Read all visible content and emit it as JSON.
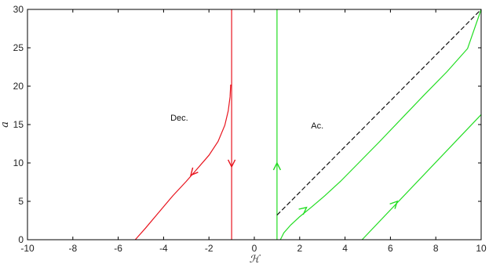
{
  "chart_data": {
    "type": "line",
    "title": "",
    "xlabel": "ℋ",
    "ylabel": "a",
    "xlim": [
      -10,
      10
    ],
    "ylim": [
      0,
      30
    ],
    "xticks": [
      "-10",
      "-8",
      "-6",
      "-4",
      "-2",
      "0",
      "2",
      "4",
      "6",
      "8",
      "10"
    ],
    "yticks": [
      "0",
      "5",
      "10",
      "15",
      "20",
      "25",
      "30"
    ],
    "grid": false,
    "annotations": [
      {
        "text": "Dec.",
        "x": -3.7,
        "y": 15.5
      },
      {
        "text": "Ac.",
        "x": 2.5,
        "y": 14.5
      }
    ],
    "series": [
      {
        "color": "#e8141e",
        "style": "solid",
        "x": [
          -5.25,
          -4.8,
          -4.2,
          -3.6,
          -3.0,
          -2.5,
          -2.0,
          -1.6,
          -1.3,
          -1.15,
          -1.07,
          -1.04
        ],
        "y": [
          0,
          1.5,
          3.6,
          5.7,
          7.6,
          9.3,
          11.0,
          12.8,
          14.9,
          16.8,
          18.6,
          20.2
        ],
        "arrows": [
          {
            "x": -2.8,
            "y": 8.4,
            "dir": "down"
          }
        ]
      },
      {
        "color": "#e8141e",
        "style": "solid",
        "x": [
          -1.0,
          -1.0
        ],
        "y": [
          30,
          0
        ],
        "arrows": [
          {
            "x": -1.0,
            "y": 9.5,
            "dir": "down"
          }
        ]
      },
      {
        "color": "#22dd22",
        "style": "solid",
        "x": [
          1.0,
          1.0
        ],
        "y": [
          0,
          30
        ],
        "arrows": [
          {
            "x": 1.0,
            "y": 10.0,
            "dir": "up"
          }
        ]
      },
      {
        "color": "#22dd22",
        "style": "solid",
        "x": [
          1.15,
          1.3,
          1.6,
          2.0,
          2.5,
          3.1,
          3.8,
          4.6,
          5.5,
          6.5,
          7.5,
          8.5,
          9.4,
          10.0
        ],
        "y": [
          0,
          0.9,
          1.9,
          3.0,
          4.2,
          5.7,
          7.6,
          10.0,
          12.7,
          15.8,
          18.9,
          21.9,
          24.9,
          30.0
        ],
        "arrows": [
          {
            "x": 2.3,
            "y": 4.2,
            "dir": "up"
          }
        ]
      },
      {
        "color": "#22dd22",
        "style": "solid",
        "x": [
          4.75,
          10.0
        ],
        "y": [
          0,
          16.3
        ],
        "arrows": [
          {
            "x": 6.3,
            "y": 5.0,
            "dir": "up"
          }
        ]
      },
      {
        "color": "#111111",
        "style": "dashed",
        "x": [
          1.0,
          10.0
        ],
        "y": [
          3.2,
          30.0
        ],
        "arrows": []
      }
    ]
  }
}
